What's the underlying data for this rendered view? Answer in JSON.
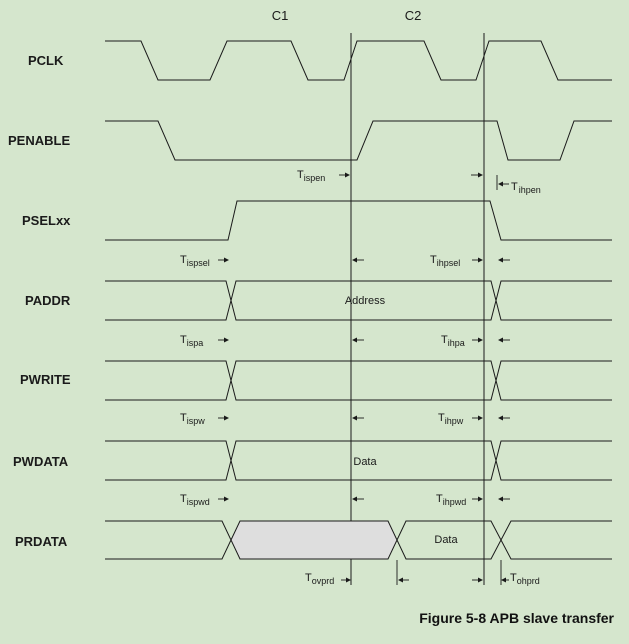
{
  "clock_edges": [
    "C1",
    "C2"
  ],
  "signals": [
    {
      "id": "pclk",
      "label": "PCLK"
    },
    {
      "id": "penable",
      "label": "PENABLE"
    },
    {
      "id": "pselxx",
      "label": "PSELxx"
    },
    {
      "id": "paddr",
      "label": "PADDR"
    },
    {
      "id": "pwrite",
      "label": "PWRITE"
    },
    {
      "id": "pwdata",
      "label": "PWDATA"
    },
    {
      "id": "prdata",
      "label": "PRDATA"
    }
  ],
  "bus_values": {
    "paddr": "Address",
    "pwdata": "Data",
    "prdata": "Data"
  },
  "timing_params": [
    {
      "id": "ispen",
      "base": "T",
      "sub": "ispen"
    },
    {
      "id": "ihpen",
      "base": "T",
      "sub": "ihpen"
    },
    {
      "id": "ispsel",
      "base": "T",
      "sub": "ispsel"
    },
    {
      "id": "ihpsel",
      "base": "T",
      "sub": "ihpsel"
    },
    {
      "id": "ispa",
      "base": "T",
      "sub": "ispa"
    },
    {
      "id": "ihpa",
      "base": "T",
      "sub": "ihpa"
    },
    {
      "id": "ispw",
      "base": "T",
      "sub": "ispw"
    },
    {
      "id": "ihpw",
      "base": "T",
      "sub": "ihpw"
    },
    {
      "id": "ispwd",
      "base": "T",
      "sub": "ispwd"
    },
    {
      "id": "ihpwd",
      "base": "T",
      "sub": "ihpwd"
    },
    {
      "id": "ovprd",
      "base": "T",
      "sub": "ovprd"
    },
    {
      "id": "ohprd",
      "base": "T",
      "sub": "ohprd"
    }
  ],
  "caption": "Figure 5-8 APB slave transfer"
}
